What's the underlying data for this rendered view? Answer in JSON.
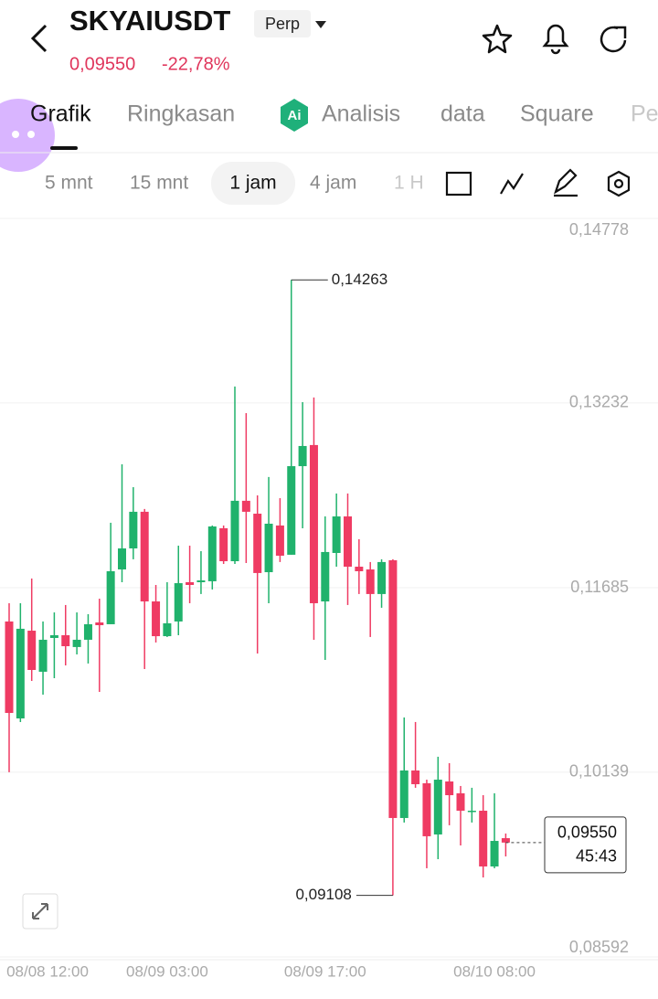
{
  "header": {
    "symbol": "SKYAIUSDT",
    "badge": "Perp",
    "price": "0,09550",
    "change": "-22,78%"
  },
  "tabs": [
    "Grafik",
    "Ringkasan",
    "Analisis",
    "data",
    "Square",
    "Pe"
  ],
  "timeframes": [
    "5 mnt",
    "15 mnt",
    "1 jam",
    "4 jam",
    "1 H"
  ],
  "chart_data": {
    "type": "candlestick",
    "open": [
      0.11402,
      0.1059,
      0.11325,
      0.10981,
      0.11264,
      0.11287,
      0.11188,
      0.11249,
      0.11394,
      0.11379,
      0.11838,
      0.12014,
      0.12321,
      0.1157,
      0.11279,
      0.11402,
      0.11731,
      0.11731,
      0.11739,
      0.12183,
      0.11907,
      0.12413,
      0.12305,
      0.11815,
      0.12206,
      0.11961,
      0.12703,
      0.1288,
      0.1157,
      0.11976,
      0.12282,
      0.11861,
      0.11838,
      0.11632,
      0.11915,
      0.09756,
      0.10154,
      0.10047,
      0.09618,
      0.10062,
      0.09963,
      0.09809,
      0.09817,
      0.0935,
      0.09587
    ],
    "high": [
      0.11555,
      0.11555,
      0.11762,
      0.11402,
      0.11478,
      0.1154,
      0.11478,
      0.11463,
      0.11593,
      0.12229,
      0.12719,
      0.12527,
      0.12344,
      0.11708,
      0.11731,
      0.12037,
      0.12037,
      0.11991,
      0.12206,
      0.12206,
      0.1337,
      0.13147,
      0.12458,
      0.12612,
      0.12435,
      0.14263,
      0.13239,
      0.13278,
      0.12282,
      0.12474,
      0.12474,
      0.12091,
      0.119,
      0.11923,
      0.11923,
      0.10598,
      0.1056,
      0.10077,
      0.10269,
      0.10215,
      0.10024,
      0.10009,
      0.09947,
      0.09963,
      0.09626
    ],
    "low": [
      0.10139,
      0.1056,
      0.10904,
      0.10789,
      0.10927,
      0.11034,
      0.11126,
      0.1105,
      0.10812,
      0.11379,
      0.11731,
      0.11923,
      0.11004,
      0.11226,
      0.11272,
      0.11287,
      0.11555,
      0.11632,
      0.1167,
      0.11884,
      0.11884,
      0.11892,
      0.11134,
      0.11555,
      0.119,
      0.11961,
      0.12183,
      0.11249,
      0.1108,
      0.11861,
      0.1154,
      0.11632,
      0.11272,
      0.11517,
      0.09108,
      0.09718,
      0.10009,
      0.09335,
      0.09411,
      0.09695,
      0.09526,
      0.09718,
      0.09258,
      0.09335,
      0.09434
    ],
    "close": [
      0.10636,
      0.11341,
      0.10996,
      0.11249,
      0.11287,
      0.11195,
      0.11249,
      0.11379,
      0.11371,
      0.11823,
      0.12014,
      0.12321,
      0.1157,
      0.11279,
      0.11387,
      0.11723,
      0.11708,
      0.11746,
      0.12198,
      0.11907,
      0.12413,
      0.12321,
      0.11808,
      0.12221,
      0.11953,
      0.12703,
      0.12872,
      0.11555,
      0.11984,
      0.12282,
      0.11861,
      0.11823,
      0.11632,
      0.119,
      0.09756,
      0.10154,
      0.10039,
      0.09603,
      0.10077,
      0.09947,
      0.09817,
      0.09817,
      0.0935,
      0.09564,
      0.0955
    ],
    "up_color": "#20b26c",
    "down_color": "#ef3b63",
    "ylim": [
      0.08592,
      0.14778
    ],
    "yticks": [
      {
        "value": 0.14778,
        "label": "0,14778"
      },
      {
        "value": 0.13232,
        "label": "0,13232"
      },
      {
        "value": 0.11685,
        "label": "0,11685"
      },
      {
        "value": 0.10139,
        "label": "0,10139"
      },
      {
        "value": 0.08592,
        "label": "0,08592"
      }
    ],
    "xticks": [
      {
        "value": -1,
        "label": "08/08 12:00"
      },
      {
        "value": 14,
        "label": "08/09 03:00"
      },
      {
        "value": 28,
        "label": "08/09 17:00"
      },
      {
        "value": 43,
        "label": "08/10 08:00"
      }
    ],
    "grid": true,
    "high_label": {
      "value": 0.14263,
      "label": "0,14263"
    },
    "low_label": {
      "value": 0.09108,
      "label": "0,09108"
    },
    "last_price": {
      "value": 0.0955,
      "label": "0,09550",
      "countdown": "45:43"
    }
  }
}
